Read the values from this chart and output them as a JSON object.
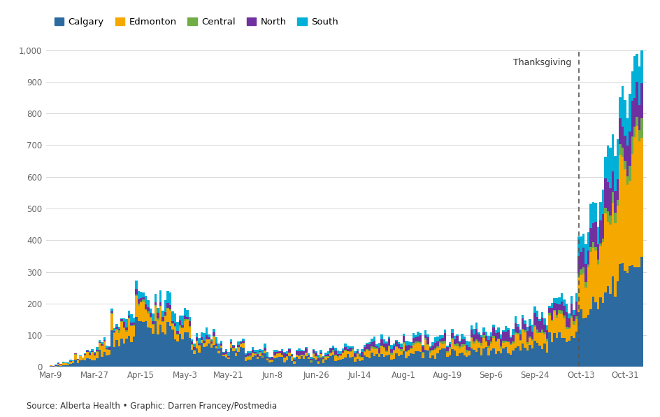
{
  "colors": {
    "Calgary": "#2d6a9f",
    "Edmonton": "#f5a800",
    "Central": "#70ad47",
    "North": "#7030a0",
    "South": "#00b0d8"
  },
  "legend_labels": [
    "Calgary",
    "Edmonton",
    "Central",
    "North",
    "South"
  ],
  "tick_labels": [
    "Mar-9",
    "Mar-27",
    "Apr-15",
    "May-3",
    "May-21",
    "Jun-8",
    "Jun-26",
    "Jul-14",
    "Aug-1",
    "Aug-19",
    "Sep-6",
    "Sep-24",
    "Oct-13",
    "Oct-31"
  ],
  "tick_days": [
    0,
    18,
    37,
    55,
    73,
    91,
    109,
    127,
    145,
    163,
    181,
    199,
    218,
    236
  ],
  "thanksgiving_day": 217,
  "thanksgiving_label": "Thanksgiving",
  "source_text": "Source: Alberta Health • Graphic: Darren Francey/Postmedia",
  "source_underline": "Source: Alberta Health",
  "ylim": [
    0,
    1000
  ],
  "yticks": [
    0,
    100,
    200,
    300,
    400,
    500,
    600,
    700,
    800,
    900,
    1000
  ],
  "background_color": "#ffffff",
  "grid_color": "#d8d8d8",
  "text_color": "#666666",
  "n_days": 244
}
